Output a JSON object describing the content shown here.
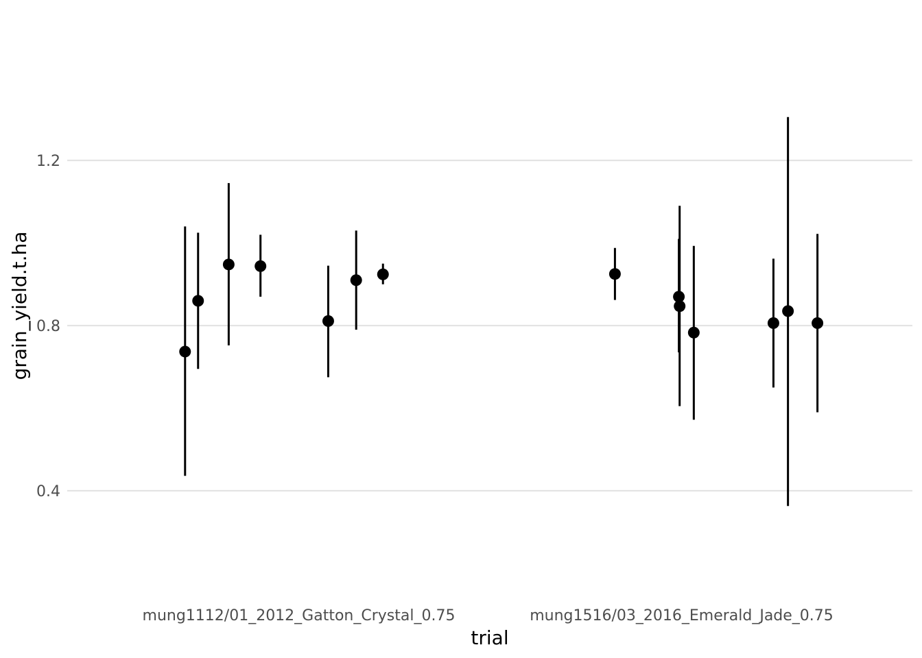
{
  "chart_data": {
    "type": "scatter",
    "title": "",
    "xlabel": "trial",
    "ylabel": "grain_yield.t.ha",
    "ylim": [
      0.1,
      1.5
    ],
    "y_ticks": [
      0.4,
      0.8,
      1.2
    ],
    "y_tick_labels": [
      "0.4",
      "0.8",
      "1.2"
    ],
    "grid": "horizontal",
    "legend": "none",
    "categories": [
      "mung1112/01_2012_Gatton_Crystal_0.75",
      "mung1516/03_2016_Emerald_Jade_0.75"
    ],
    "points": [
      {
        "category": "mung1112/01_2012_Gatton_Crystal_0.75",
        "offset": -0.297,
        "y": 0.737,
        "ymin": 0.436,
        "ymax": 1.04
      },
      {
        "category": "mung1112/01_2012_Gatton_Crystal_0.75",
        "offset": -0.263,
        "y": 0.86,
        "ymin": 0.695,
        "ymax": 1.025
      },
      {
        "category": "mung1112/01_2012_Gatton_Crystal_0.75",
        "offset": -0.183,
        "y": 0.948,
        "ymin": 0.752,
        "ymax": 1.145
      },
      {
        "category": "mung1112/01_2012_Gatton_Crystal_0.75",
        "offset": -0.1,
        "y": 0.944,
        "ymin": 0.87,
        "ymax": 1.02
      },
      {
        "category": "mung1112/01_2012_Gatton_Crystal_0.75",
        "offset": 0.077,
        "y": 0.811,
        "ymin": 0.675,
        "ymax": 0.945
      },
      {
        "category": "mung1112/01_2012_Gatton_Crystal_0.75",
        "offset": 0.15,
        "y": 0.91,
        "ymin": 0.79,
        "ymax": 1.03
      },
      {
        "category": "mung1112/01_2012_Gatton_Crystal_0.75",
        "offset": 0.22,
        "y": 0.924,
        "ymin": 0.9,
        "ymax": 0.95
      },
      {
        "category": "mung1516/03_2016_Emerald_Jade_0.75",
        "offset": -0.174,
        "y": 0.925,
        "ymin": 0.862,
        "ymax": 0.988
      },
      {
        "category": "mung1516/03_2016_Emerald_Jade_0.75",
        "offset": -0.007,
        "y": 0.87,
        "ymin": 0.735,
        "ymax": 1.01
      },
      {
        "category": "mung1516/03_2016_Emerald_Jade_0.75",
        "offset": -0.005,
        "y": 0.847,
        "ymin": 0.605,
        "ymax": 1.09
      },
      {
        "category": "mung1516/03_2016_Emerald_Jade_0.75",
        "offset": 0.032,
        "y": 0.783,
        "ymin": 0.572,
        "ymax": 0.993
      },
      {
        "category": "mung1516/03_2016_Emerald_Jade_0.75",
        "offset": 0.24,
        "y": 0.806,
        "ymin": 0.65,
        "ymax": 0.962
      },
      {
        "category": "mung1516/03_2016_Emerald_Jade_0.75",
        "offset": 0.278,
        "y": 0.835,
        "ymin": 0.363,
        "ymax": 1.305
      },
      {
        "category": "mung1516/03_2016_Emerald_Jade_0.75",
        "offset": 0.355,
        "y": 0.806,
        "ymin": 0.59,
        "ymax": 1.022
      }
    ]
  }
}
